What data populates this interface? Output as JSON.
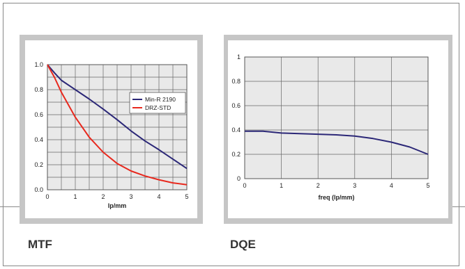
{
  "colors": {
    "panel_bg": "#c6c6c6",
    "plot_bg": "#e9e9e9",
    "grid": "#666666",
    "series_blue": "#2b2777",
    "series_red": "#e8281d"
  },
  "captions": {
    "mtf": "MTF",
    "dqe": "DQE"
  },
  "chart_data": [
    {
      "type": "line",
      "xlabel": "lp/mm",
      "ylabel": "",
      "xlim": [
        0,
        5
      ],
      "ylim": [
        0,
        1.0
      ],
      "xticks": [
        "0",
        "1",
        "2",
        "3",
        "4",
        "5"
      ],
      "yticks": [
        "0.0",
        "0.2",
        "0.4",
        "0.6",
        "0.8",
        "1.0"
      ],
      "grid": true,
      "legend_position": "top-right",
      "series": [
        {
          "name": "Min-R 2190",
          "color": "#2b2777",
          "x": [
            0,
            0.25,
            0.5,
            1,
            1.5,
            2,
            2.5,
            3,
            3.5,
            4,
            4.5,
            5
          ],
          "y": [
            1.0,
            0.935,
            0.875,
            0.8,
            0.725,
            0.645,
            0.56,
            0.47,
            0.39,
            0.32,
            0.245,
            0.17
          ]
        },
        {
          "name": "DRZ-STD",
          "color": "#e8281d",
          "x": [
            0,
            0.25,
            0.5,
            1,
            1.5,
            2,
            2.5,
            3,
            3.5,
            4,
            4.5,
            5
          ],
          "y": [
            1.0,
            0.9,
            0.78,
            0.58,
            0.42,
            0.3,
            0.21,
            0.15,
            0.11,
            0.08,
            0.055,
            0.04
          ]
        }
      ]
    },
    {
      "type": "line",
      "xlabel": "freq (lp/mm)",
      "ylabel": "",
      "xlim": [
        0,
        5
      ],
      "ylim": [
        0,
        1
      ],
      "xticks": [
        "0",
        "1",
        "2",
        "3",
        "4",
        "5"
      ],
      "yticks": [
        "0",
        "0.2",
        "0.4",
        "0.6",
        "0.8",
        "1"
      ],
      "grid": true,
      "series": [
        {
          "name": "",
          "color": "#2b2777",
          "x": [
            0,
            0.5,
            1,
            1.5,
            2,
            2.5,
            3,
            3.5,
            4,
            4.5,
            5
          ],
          "y": [
            0.39,
            0.39,
            0.375,
            0.37,
            0.365,
            0.36,
            0.35,
            0.33,
            0.3,
            0.26,
            0.2
          ]
        }
      ]
    }
  ]
}
